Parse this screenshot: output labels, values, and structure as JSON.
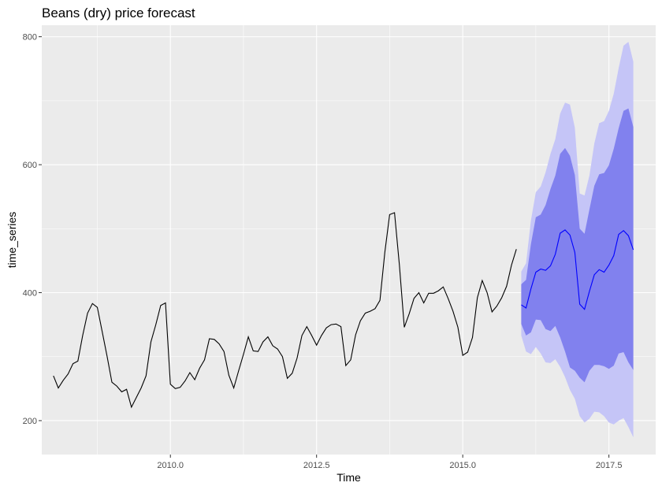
{
  "chart_data": {
    "type": "line",
    "title": "Beans (dry) price forecast",
    "xlabel": "Time",
    "ylabel": "time_series",
    "xlim": [
      2007.8,
      2018.3
    ],
    "ylim": [
      147,
      818
    ],
    "x_ticks": [
      2010.0,
      2012.5,
      2015.0,
      2017.5
    ],
    "x_tick_labels": [
      "2010.0",
      "2012.5",
      "2015.0",
      "2017.5"
    ],
    "y_ticks": [
      200,
      400,
      600,
      800
    ],
    "y_tick_labels": [
      "200",
      "400",
      "600",
      "800"
    ],
    "grid": true,
    "legend": "none",
    "colors": {
      "panel": "#ebebeb",
      "grid": "#ffffff",
      "series": "#000000",
      "forecast": "#0000ff",
      "band95": "#c5c5f7",
      "band80": "#8181ee"
    },
    "series": [
      {
        "start": 2008.0,
        "frequency": 12,
        "values": [
          270,
          251,
          263,
          273,
          289,
          293,
          333,
          368,
          383,
          377,
          339,
          301,
          260,
          254,
          245,
          249,
          221,
          236,
          251,
          270,
          323,
          350,
          380,
          384,
          257,
          250,
          252,
          262,
          275,
          264,
          282,
          295,
          328,
          327,
          320,
          308,
          271,
          251,
          278,
          304,
          331,
          309,
          308,
          323,
          331,
          317,
          312,
          300,
          266,
          274,
          298,
          333,
          347,
          333,
          318,
          333,
          345,
          350,
          351,
          347,
          286,
          295,
          334,
          356,
          368,
          371,
          375,
          388,
          463,
          522,
          525,
          443,
          346,
          367,
          391,
          400,
          384,
          399,
          399,
          403,
          409,
          391,
          371,
          346,
          302,
          307,
          330,
          392,
          419,
          400,
          370,
          379,
          392,
          410,
          443,
          468
        ]
      }
    ],
    "forecast": {
      "start": 2016.0,
      "frequency": 12,
      "mean": [
        381,
        376,
        406,
        432,
        437,
        435,
        442,
        460,
        493,
        498,
        490,
        463,
        382,
        374,
        402,
        428,
        436,
        432,
        443,
        458,
        491,
        497,
        489,
        467
      ],
      "lo80": [
        351,
        333,
        338,
        358,
        357,
        343,
        340,
        348,
        330,
        308,
        283,
        278,
        267,
        260,
        278,
        287,
        287,
        285,
        281,
        286,
        305,
        307,
        291,
        279
      ],
      "hi80": [
        413,
        420,
        476,
        518,
        522,
        537,
        562,
        583,
        617,
        626,
        614,
        584,
        500,
        492,
        530,
        567,
        585,
        587,
        599,
        625,
        657,
        684,
        688,
        659
      ],
      "lo95": [
        333,
        308,
        304,
        315,
        305,
        291,
        290,
        296,
        284,
        268,
        248,
        234,
        207,
        197,
        203,
        214,
        213,
        207,
        197,
        194,
        200,
        204,
        190,
        174
      ],
      "hi95": [
        433,
        446,
        513,
        557,
        566,
        588,
        617,
        640,
        680,
        697,
        694,
        658,
        555,
        552,
        583,
        633,
        665,
        668,
        684,
        711,
        751,
        786,
        792,
        761
      ]
    }
  }
}
